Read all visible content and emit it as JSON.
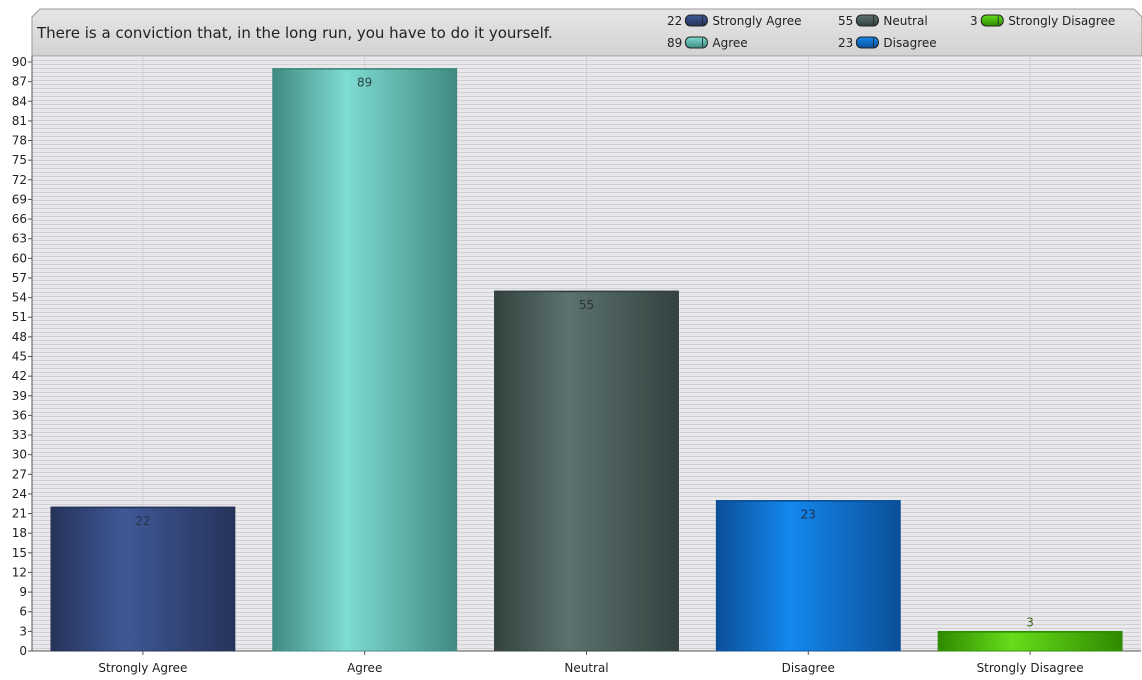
{
  "chart_data": {
    "type": "bar",
    "title": "There is a conviction that, in the long run, you have to do it yourself.",
    "categories": [
      "Strongly Agree",
      "Agree",
      "Neutral",
      "Disagree",
      "Strongly Disagree"
    ],
    "values": [
      22,
      89,
      55,
      23,
      3
    ],
    "value_labels": [
      "22",
      "89",
      "55",
      "23",
      "3"
    ],
    "ylim": [
      0,
      90
    ],
    "yticks": [
      "0",
      "3",
      "6",
      "9",
      "12",
      "15",
      "18",
      "21",
      "24",
      "27",
      "30",
      "33",
      "36",
      "39",
      "42",
      "45",
      "48",
      "51",
      "54",
      "57",
      "60",
      "63",
      "66",
      "69",
      "72",
      "75",
      "78",
      "81",
      "84",
      "87",
      "90"
    ],
    "grid": true,
    "legend_position": "top-right",
    "legend": [
      {
        "count": "22",
        "label": "Strongly Agree"
      },
      {
        "count": "89",
        "label": "Agree"
      },
      {
        "count": "55",
        "label": "Neutral"
      },
      {
        "count": "23",
        "label": "Disagree"
      },
      {
        "count": "3",
        "label": "Strongly Disagree"
      }
    ],
    "colors": {
      "Strongly Agree": {
        "dark": "#26335a",
        "light": "#3f5896"
      },
      "Agree": {
        "dark": "#3f8a80",
        "light": "#7fdcd2"
      },
      "Neutral": {
        "dark": "#33423f",
        "light": "#5c726e"
      },
      "Disagree": {
        "dark": "#0b4f98",
        "light": "#1488ee"
      },
      "Strongly Disagree": {
        "dark": "#2f8a00",
        "light": "#66dd1a"
      }
    },
    "label_colors": {
      "Strongly Agree": "#2a3550",
      "Agree": "#2a4a46",
      "Neutral": "#2a3432",
      "Disagree": "#1a2f50",
      "Strongly Disagree": "#3a6a20"
    }
  }
}
